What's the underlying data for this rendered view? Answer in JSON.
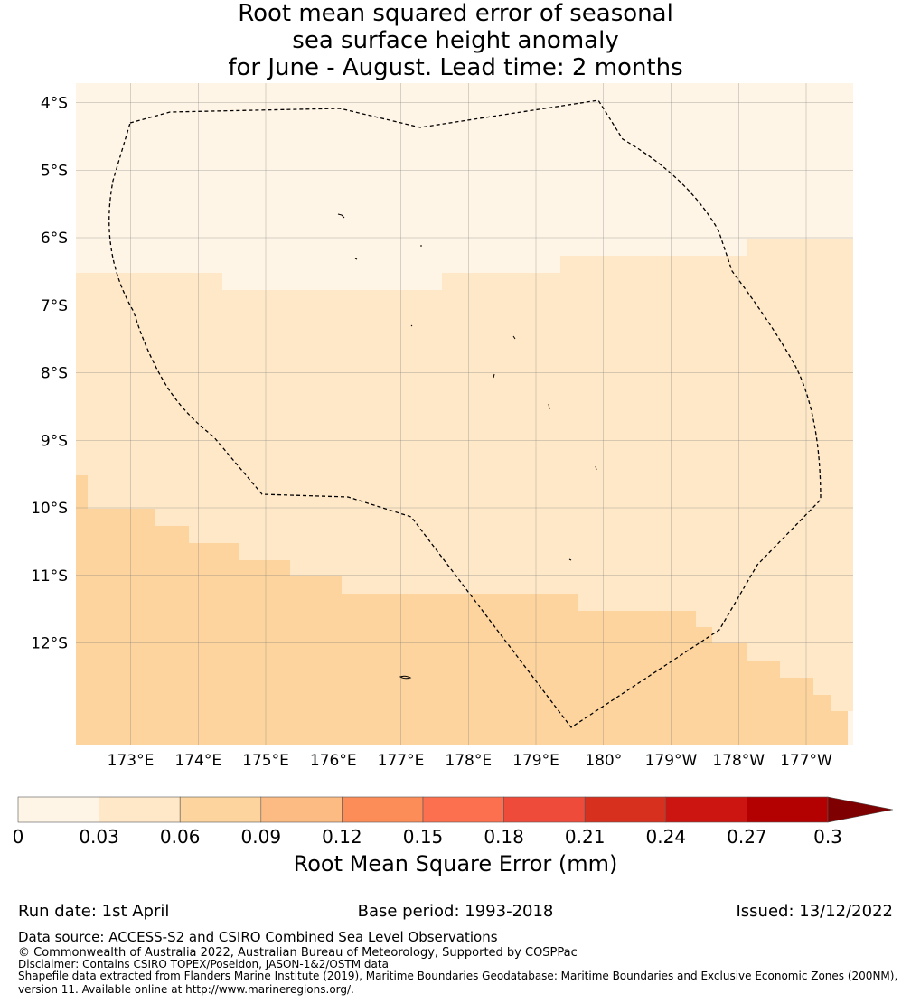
{
  "title": {
    "line1": "Root mean squared error of seasonal",
    "line2": "sea surface height anomaly",
    "line3": "for June - August. Lead time: 2 months"
  },
  "map": {
    "lat_labels": [
      "4°S",
      "5°S",
      "6°S",
      "7°S",
      "8°S",
      "9°S",
      "10°S",
      "11°S",
      "12°S"
    ],
    "lon_labels": [
      "173°E",
      "174°E",
      "175°E",
      "176°E",
      "177°E",
      "178°E",
      "179°E",
      "180°",
      "179°W",
      "178°W",
      "177°W"
    ],
    "boundary_style": "dashed",
    "grid": true
  },
  "colorbar": {
    "title": "Root Mean Square Error (mm)",
    "ticks": [
      "0",
      "0.03",
      "0.06",
      "0.09",
      "0.12",
      "0.15",
      "0.18",
      "0.21",
      "0.24",
      "0.27",
      "0.3"
    ],
    "colors": [
      "#fff5e6",
      "#fee8c8",
      "#fdd49e",
      "#fdbb84",
      "#fc8d59",
      "#fc6f4f",
      "#ef4b3a",
      "#d7301f",
      "#cc1410",
      "#b30000",
      "#7f0000"
    ],
    "extend": "max"
  },
  "footer": {
    "run_date": "Run date: 1st April",
    "base_period": "Base period: 1993-2018",
    "issued": "Issued: 13/12/2022",
    "data_source": "Data source: ACCESS-S2 and CSIRO Combined Sea Level Observations",
    "copyright": "© Commonwealth of Australia 2022, Australian Bureau of Meteorology, Supported by COSPPac",
    "disclaimer": "Disclaimer: Contains CSIRO TOPEX/Poseidon, JASON-1&2/OSTM data",
    "shapefile_line1": "Shapefile data extracted from Flanders Marine Institute (2019), Maritime Boundaries Geodatabase: Maritime Boundaries and Exclusive Economic Zones (200NM),",
    "shapefile_line2": "version 11. Available online at http://www.marineregions.org/."
  }
}
